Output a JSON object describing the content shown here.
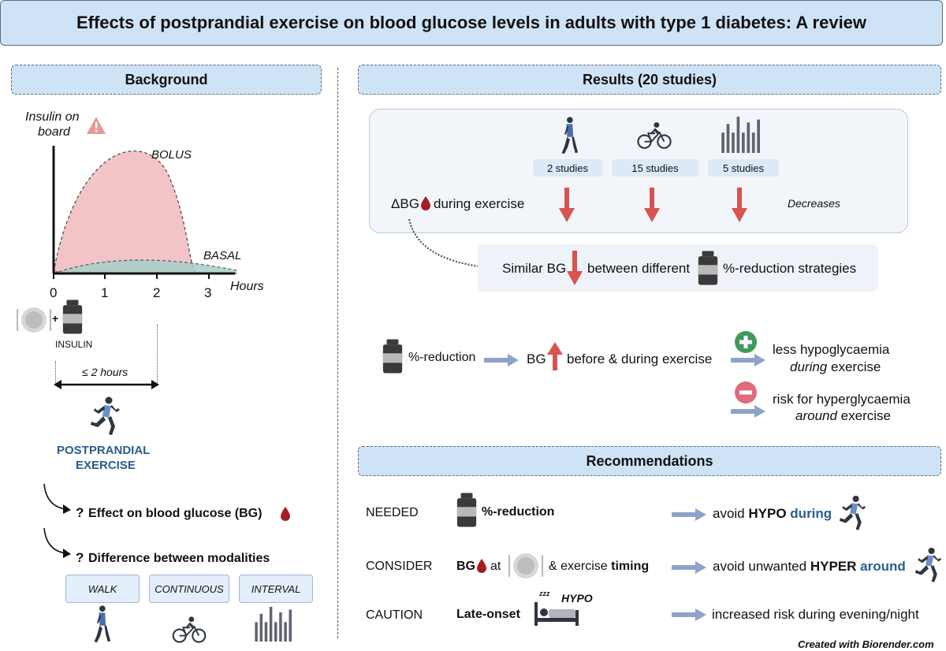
{
  "title": "Effects of postprandial exercise on blood glucose levels in adults with type 1 diabetes: A review",
  "colors": {
    "header_fill": "#cfe3f6",
    "bolus_fill": "#f2c4c7",
    "basal_fill": "#a9cfc9",
    "arrow_red": "#d9534f",
    "arrow_blue": "#8ea3c9",
    "postprandial_text": "#2a5d8f",
    "plus_green": "#3f9a5c",
    "minus_red": "#e06b7a"
  },
  "background": {
    "heading": "Background",
    "y_axis_label_line1": "Insulin on",
    "y_axis_label_line2": "board",
    "bolus_label": "BOLUS",
    "basal_label": "BASAL",
    "x_axis_label": "Hours",
    "ticks": [
      "0",
      "1",
      "2",
      "3"
    ],
    "plus_sign": "+",
    "insulin_label": "INSULIN",
    "window_label": "≤ 2 hours",
    "postprandial_line1": "POSTPRANDIAL",
    "postprandial_line2": "EXERCISE",
    "q_mark": "?",
    "question1": "Effect on blood glucose (BG)",
    "question2": "Difference between modalities",
    "modalities": [
      "WALK",
      "CONTINUOUS",
      "INTERVAL"
    ],
    "icons": [
      "warning-icon",
      "plate-icon",
      "insulin-vial-icon",
      "runner-icon",
      "walker-icon",
      "cyclist-icon",
      "interval-bars-icon",
      "blood-drop-icon"
    ]
  },
  "results": {
    "heading": "Results (20 studies)",
    "study_counts": [
      "2 studies",
      "15 studies",
      "5 studies"
    ],
    "delta_bg_label": "ΔBG",
    "during_exercise": "during exercise",
    "decreases": "Decreases",
    "similar_bg": "Similar BG",
    "between_different": "between different",
    "reduction_strategies": "%-reduction strategies",
    "reduction_label": "%-reduction",
    "bg_label": "BG",
    "before_during": "before & during exercise",
    "plus_line1": "less hypoglycaemia",
    "plus_line2_em": "during",
    "plus_line2_rest": "exercise",
    "minus_line1": "risk for hyperglycaemia",
    "minus_line2_em": "around",
    "minus_line2_rest": "exercise"
  },
  "recommendations": {
    "heading": "Recommendations",
    "rows": [
      {
        "label": "NEEDED",
        "item": "%-reduction",
        "result_pre": "avoid",
        "result_bold": "HYPO",
        "result_accent": "during"
      },
      {
        "label": "CONSIDER",
        "item_bg": "BG",
        "item_at": "at",
        "item_amp": "& exercise",
        "item_bold": "timing",
        "result_pre": "avoid unwanted",
        "result_bold": "HYPER",
        "result_accent": "around"
      },
      {
        "label": "CAUTION",
        "item": "Late-onset",
        "zzz": "zzz",
        "hypo_tag": "HYPO",
        "result_pre": "increased risk during evening/night"
      }
    ]
  },
  "footer": "Created with Biorender.com"
}
